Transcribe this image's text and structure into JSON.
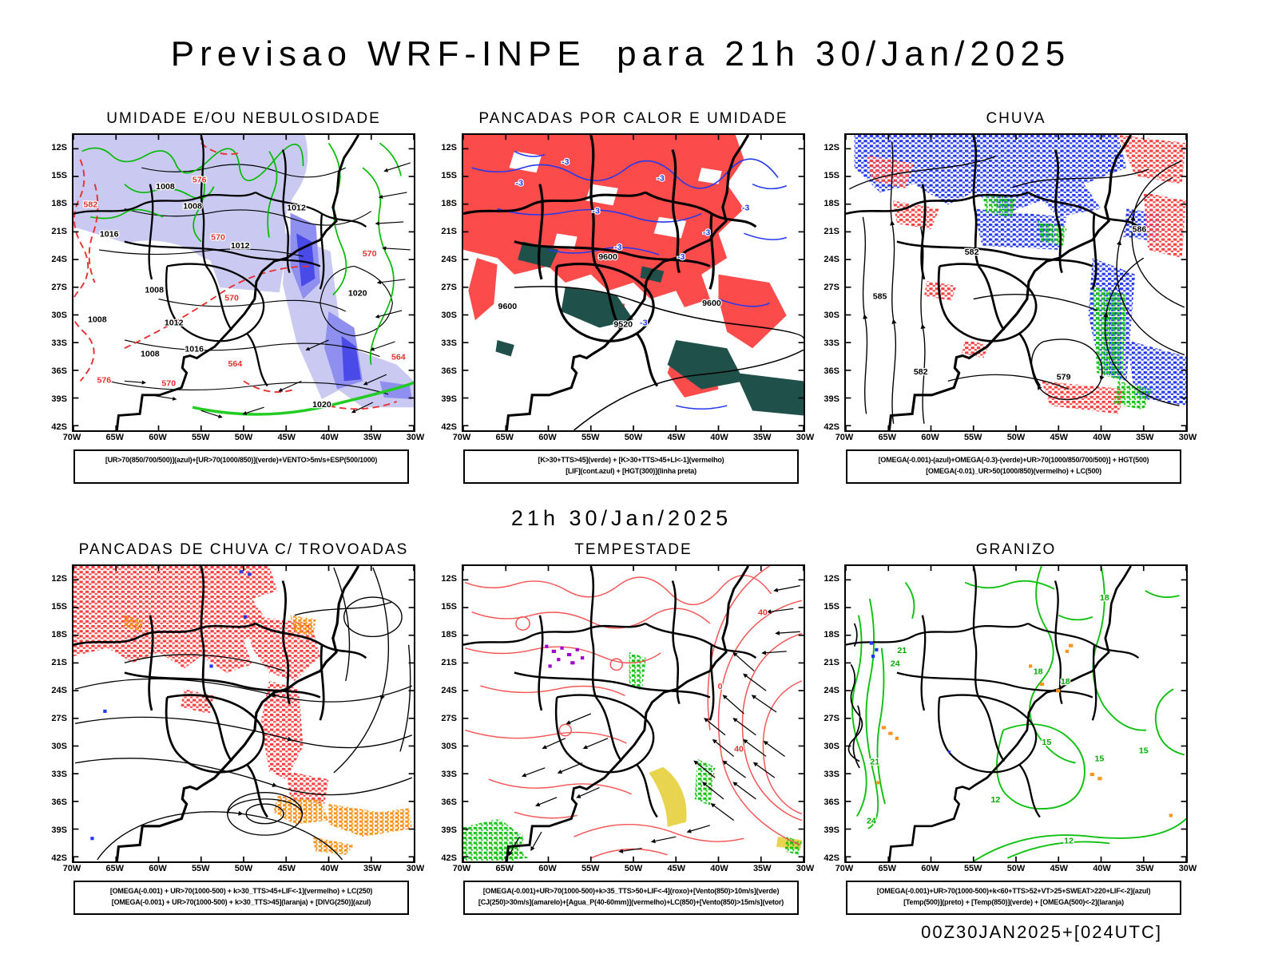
{
  "header": {
    "title": "Previsao WRF-INPE  para 21h 30/Jan/2025"
  },
  "center_time": "21h 30/Jan/2025",
  "footer_stamp": "00Z30JAN2025+[024UTC]",
  "axes": {
    "lat_labels": [
      "12S",
      "15S",
      "18S",
      "21S",
      "24S",
      "27S",
      "30S",
      "33S",
      "36S",
      "39S",
      "42S"
    ],
    "lon_labels": [
      "70W",
      "65W",
      "60W",
      "55W",
      "50W",
      "45W",
      "40W",
      "35W",
      "30W"
    ]
  },
  "colors": {
    "black": "#000000",
    "red": "#e83030",
    "green": "#00aa00",
    "blue": "#2438ee",
    "purple": "#a000c8",
    "orange": "#f7941e",
    "yellow": "#e8d44f",
    "lavender": "#c9c9f1",
    "teal": "#20504a",
    "salmon": "#f55454",
    "fill_red": "#fb4b4b",
    "fill_blue": "#5a5aec"
  },
  "panels": [
    {
      "id": "umidade",
      "title": "UMIDADE E/OU NEBULOSIDADE",
      "caption_lines": [
        "[UR>70(850/700/500)](azul)+[UR>70(1000/850)](verde)+VENTO>5m/s+ESP(500/1000)"
      ],
      "contour_labels": [
        [
          "1008",
          108,
          66,
          "black"
        ],
        [
          "1008",
          140,
          90,
          "black"
        ],
        [
          "1012",
          196,
          138,
          "black"
        ],
        [
          "1012",
          262,
          92,
          "black"
        ],
        [
          "1016",
          42,
          124,
          "black"
        ],
        [
          "1008",
          95,
          192,
          "black"
        ],
        [
          "1016",
          142,
          264,
          "black"
        ],
        [
          "1008",
          90,
          270,
          "black"
        ],
        [
          "1012",
          118,
          232,
          "black"
        ],
        [
          "1020",
          334,
          196,
          "black"
        ],
        [
          "1020",
          292,
          332,
          "black"
        ],
        [
          "1008",
          28,
          228,
          "black"
        ],
        [
          "576",
          148,
          58,
          "red"
        ],
        [
          "570",
          170,
          128,
          "red"
        ],
        [
          "582",
          20,
          88,
          "red"
        ],
        [
          "570",
          186,
          202,
          "red"
        ],
        [
          "576",
          36,
          302,
          "red"
        ],
        [
          "570",
          112,
          306,
          "red"
        ],
        [
          "564",
          382,
          274,
          "red"
        ],
        [
          "570",
          348,
          148,
          "red"
        ],
        [
          "564",
          190,
          282,
          "red"
        ]
      ]
    },
    {
      "id": "pancadas-calor-umidade",
      "title": "PANCADAS POR CALOR E UMIDADE",
      "caption_lines": [
        "[K>30+TTS>45](verde) + [K>30+TTS>45+LI<-1](vermelho)",
        "[LIF](cont.azul) + [HGT(300)](linha preta)"
      ],
      "contour_labels": [
        [
          "9600",
          170,
          152,
          "black"
        ],
        [
          "9600",
          292,
          208,
          "black"
        ],
        [
          "9520",
          188,
          234,
          "black"
        ],
        [
          "9600",
          52,
          212,
          "black"
        ],
        [
          "-3",
          66,
          62,
          "blue"
        ],
        [
          "-3",
          156,
          96,
          "blue"
        ],
        [
          "-3",
          232,
          56,
          "blue"
        ],
        [
          "-3",
          286,
          122,
          "blue"
        ],
        [
          "-3",
          182,
          140,
          "blue"
        ],
        [
          "-3",
          332,
          92,
          "blue"
        ],
        [
          "-3",
          212,
          232,
          "blue"
        ],
        [
          "-3",
          120,
          36,
          "blue"
        ],
        [
          "-3",
          256,
          152,
          "blue"
        ]
      ]
    },
    {
      "id": "chuva",
      "title": "CHUVA",
      "caption_lines": [
        "[OMEGA(-0.001)-(azul)+OMEGA(-0.3)-(verde)+UR>70(1000/850/700/500)] + HGT(500)",
        "[OMEGA(-0.01)_UR>50(1000/850)(vermelho) + LC(500)"
      ],
      "contour_labels": [
        [
          "586",
          345,
          118,
          "black"
        ],
        [
          "582",
          148,
          146,
          "black"
        ],
        [
          "579",
          256,
          298,
          "black"
        ],
        [
          "582",
          88,
          292,
          "black"
        ],
        [
          "585",
          40,
          200,
          "black"
        ]
      ]
    },
    {
      "id": "pancadas-chuva-trovoadas",
      "title": "PANCADAS DE CHUVA C/ TROVOADAS",
      "caption_lines": [
        "[OMEGA(-0.001) + UR>70(1000-500) + k>30_TTS>45+LIF<-1](vermelho) + LC(250)",
        "[OMEGA(-0.001) + UR>70(1000-500) + k>30_TTS>45](laranja) + [DIVG(250)](azul)"
      ],
      "contour_labels": []
    },
    {
      "id": "tempestade",
      "title": "TEMPESTADE",
      "caption_lines": [
        "[OMEGA(-0.001)+UR>70(1000-500)+k>35_TTS>50+LIF<-4](roxo)+[Vento(850)>10m/s](verde)",
        "[CJ(250)>30m/s](amarelo)+[Agua_P(40-60mm)](vermelho)+LC(850)+[Vento(850)>15m/s](vetor)"
      ],
      "contour_labels": [
        [
          "40",
          352,
          60,
          "red"
        ],
        [
          "40",
          324,
          226,
          "red"
        ],
        [
          "0",
          302,
          150,
          "red"
        ]
      ]
    },
    {
      "id": "granizo",
      "title": "GRANIZO",
      "caption_lines": [
        "[OMEGA(-0.001)+UR>70(1000-500)+k<60+TTS>52+VT>25+SWEAT>220+LIF<-2](azul)",
        "[Temp(500)](preto) + [Temp(850)](verde) + [OMEGA(500)<-2](laranja)"
      ],
      "contour_labels": [
        [
          "21",
          66,
          106,
          "green"
        ],
        [
          "24",
          58,
          122,
          "green"
        ],
        [
          "21",
          34,
          242,
          "green"
        ],
        [
          "24",
          30,
          314,
          "green"
        ],
        [
          "18",
          226,
          132,
          "green"
        ],
        [
          "18",
          258,
          144,
          "green"
        ],
        [
          "15",
          236,
          218,
          "green"
        ],
        [
          "15",
          298,
          238,
          "green"
        ],
        [
          "12",
          176,
          288,
          "green"
        ],
        [
          "12",
          262,
          338,
          "green"
        ],
        [
          "18",
          304,
          42,
          "green"
        ],
        [
          "15",
          350,
          228,
          "green"
        ]
      ]
    }
  ]
}
